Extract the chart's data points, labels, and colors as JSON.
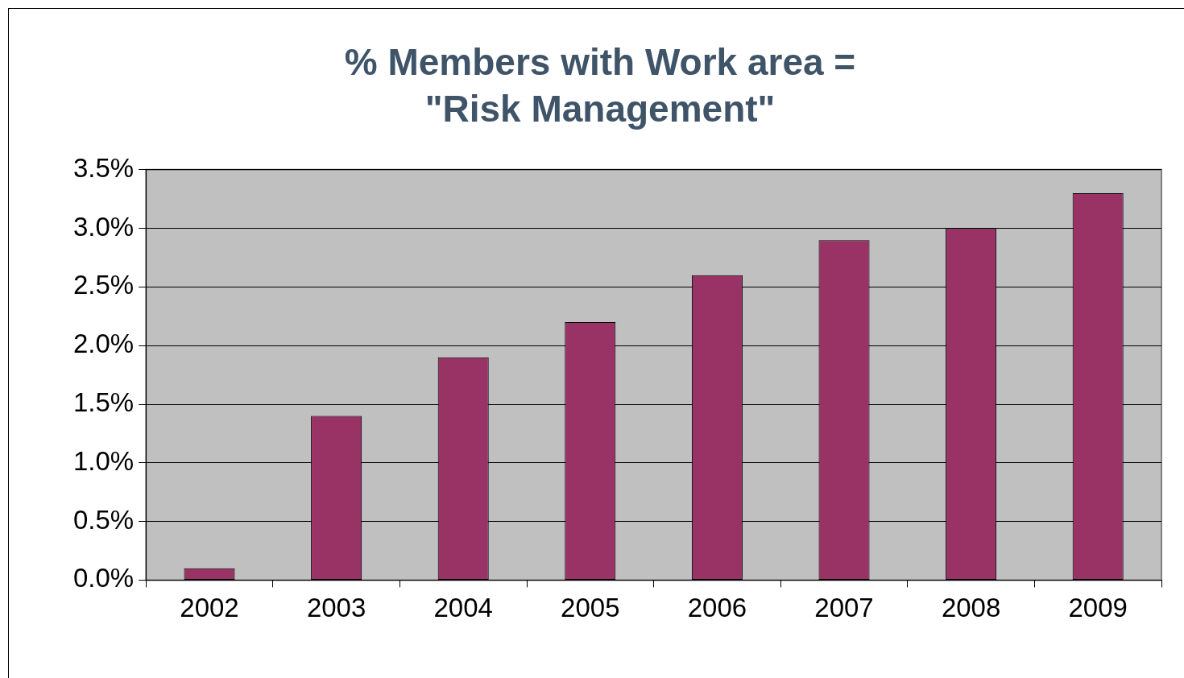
{
  "chart_data": {
    "type": "bar",
    "title": "% Members with Work area = \"Risk Management\"",
    "categories": [
      "2002",
      "2003",
      "2004",
      "2005",
      "2006",
      "2007",
      "2008",
      "2009"
    ],
    "values": [
      0.1,
      1.4,
      1.9,
      2.2,
      2.6,
      2.9,
      3.0,
      3.3
    ],
    "color": "#993366",
    "ylim": [
      0,
      3.5
    ],
    "yticks": [
      {
        "value": 0,
        "label": "0.0%"
      },
      {
        "value": 0.5,
        "label": "0.5%"
      },
      {
        "value": 1,
        "label": "1.0%"
      },
      {
        "value": 1.5,
        "label": "1.5%"
      },
      {
        "value": 2,
        "label": "2.0%"
      },
      {
        "value": 2.5,
        "label": "2.5%"
      },
      {
        "value": 3,
        "label": "3.0%"
      },
      {
        "value": 3.5,
        "label": "3.5%"
      }
    ],
    "grid": "y",
    "legend": false
  }
}
